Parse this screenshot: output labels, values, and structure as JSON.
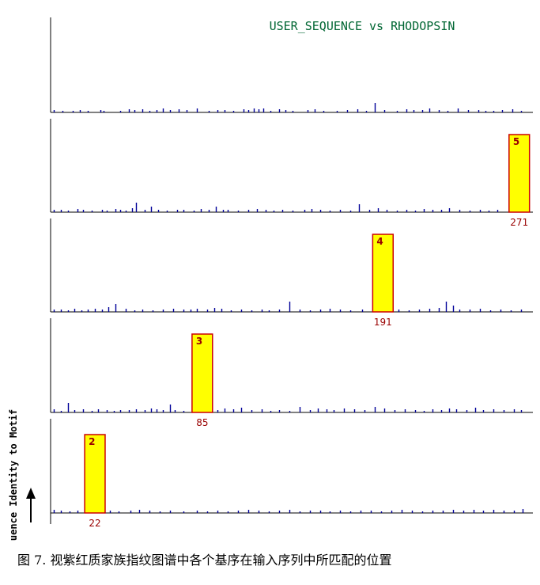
{
  "chart_data": {
    "type": "bar",
    "title": "USER_SEQUENCE vs RHODOPSIN",
    "ylabel": "uence Identity to Motif",
    "panels": [
      {
        "panel": 1,
        "motif_label": "",
        "position_label": "",
        "motif_start": null,
        "motif_end": null,
        "spikes": [
          [
            2,
            3
          ],
          [
            7,
            2
          ],
          [
            13,
            2
          ],
          [
            17,
            3
          ],
          [
            22,
            2
          ],
          [
            29,
            3
          ],
          [
            31,
            2
          ],
          [
            41,
            2
          ],
          [
            46,
            4
          ],
          [
            49,
            3
          ],
          [
            54,
            4
          ],
          [
            58,
            2
          ],
          [
            62,
            3
          ],
          [
            66,
            5
          ],
          [
            70,
            3
          ],
          [
            75,
            4
          ],
          [
            80,
            3
          ],
          [
            86,
            5
          ],
          [
            93,
            2
          ],
          [
            98,
            3
          ],
          [
            102,
            3
          ],
          [
            107,
            2
          ],
          [
            113,
            4
          ],
          [
            116,
            3
          ],
          [
            119,
            5
          ],
          [
            122,
            4
          ],
          [
            125,
            5
          ],
          [
            129,
            2
          ],
          [
            134,
            4
          ],
          [
            138,
            3
          ],
          [
            142,
            2
          ],
          [
            151,
            3
          ],
          [
            155,
            4
          ],
          [
            160,
            2
          ],
          [
            168,
            2
          ],
          [
            174,
            3
          ],
          [
            180,
            4
          ],
          [
            185,
            2
          ],
          [
            190,
            12
          ],
          [
            196,
            3
          ],
          [
            203,
            2
          ],
          [
            209,
            4
          ],
          [
            213,
            3
          ],
          [
            218,
            3
          ],
          [
            222,
            5
          ],
          [
            228,
            3
          ],
          [
            233,
            2
          ],
          [
            239,
            5
          ],
          [
            245,
            3
          ],
          [
            251,
            3
          ],
          [
            255,
            2
          ],
          [
            260,
            2
          ],
          [
            265,
            3
          ],
          [
            271,
            4
          ],
          [
            276,
            2
          ]
        ]
      },
      {
        "panel": 2,
        "motif_label": "5",
        "position_label": "271",
        "motif_start": 269,
        "motif_end": 281,
        "spikes": [
          [
            2,
            3
          ],
          [
            6,
            3
          ],
          [
            10,
            2
          ],
          [
            16,
            4
          ],
          [
            19,
            3
          ],
          [
            24,
            2
          ],
          [
            30,
            3
          ],
          [
            33,
            2
          ],
          [
            38,
            4
          ],
          [
            41,
            3
          ],
          [
            44,
            2
          ],
          [
            48,
            5
          ],
          [
            50,
            12
          ],
          [
            55,
            3
          ],
          [
            59,
            7
          ],
          [
            63,
            3
          ],
          [
            68,
            2
          ],
          [
            74,
            3
          ],
          [
            78,
            3
          ],
          [
            84,
            2
          ],
          [
            88,
            4
          ],
          [
            93,
            3
          ],
          [
            97,
            7
          ],
          [
            101,
            3
          ],
          [
            104,
            3
          ],
          [
            110,
            2
          ],
          [
            116,
            3
          ],
          [
            121,
            4
          ],
          [
            126,
            3
          ],
          [
            131,
            2
          ],
          [
            136,
            3
          ],
          [
            142,
            2
          ],
          [
            149,
            3
          ],
          [
            153,
            4
          ],
          [
            158,
            3
          ],
          [
            164,
            2
          ],
          [
            170,
            3
          ],
          [
            176,
            2
          ],
          [
            181,
            10
          ],
          [
            187,
            3
          ],
          [
            192,
            5
          ],
          [
            197,
            3
          ],
          [
            203,
            2
          ],
          [
            209,
            3
          ],
          [
            214,
            2
          ],
          [
            219,
            4
          ],
          [
            224,
            3
          ],
          [
            229,
            3
          ],
          [
            234,
            5
          ],
          [
            240,
            3
          ],
          [
            246,
            2
          ],
          [
            252,
            3
          ],
          [
            257,
            2
          ],
          [
            262,
            3
          ]
        ]
      },
      {
        "panel": 3,
        "motif_label": "4",
        "position_label": "191",
        "motif_start": 189,
        "motif_end": 201,
        "spikes": [
          [
            2,
            3
          ],
          [
            6,
            3
          ],
          [
            10,
            2
          ],
          [
            14,
            4
          ],
          [
            18,
            2
          ],
          [
            22,
            3
          ],
          [
            26,
            4
          ],
          [
            30,
            3
          ],
          [
            34,
            6
          ],
          [
            38,
            10
          ],
          [
            44,
            4
          ],
          [
            49,
            2
          ],
          [
            54,
            3
          ],
          [
            60,
            2
          ],
          [
            66,
            3
          ],
          [
            72,
            4
          ],
          [
            78,
            3
          ],
          [
            82,
            3
          ],
          [
            86,
            4
          ],
          [
            92,
            3
          ],
          [
            96,
            5
          ],
          [
            100,
            4
          ],
          [
            106,
            2
          ],
          [
            112,
            3
          ],
          [
            118,
            2
          ],
          [
            124,
            3
          ],
          [
            128,
            2
          ],
          [
            134,
            3
          ],
          [
            140,
            13
          ],
          [
            146,
            3
          ],
          [
            152,
            2
          ],
          [
            158,
            3
          ],
          [
            164,
            4
          ],
          [
            170,
            3
          ],
          [
            176,
            2
          ],
          [
            183,
            3
          ],
          [
            204,
            3
          ],
          [
            210,
            2
          ],
          [
            216,
            3
          ],
          [
            222,
            4
          ],
          [
            228,
            5
          ],
          [
            232,
            13
          ],
          [
            236,
            8
          ],
          [
            240,
            3
          ],
          [
            246,
            3
          ],
          [
            252,
            4
          ],
          [
            258,
            2
          ],
          [
            264,
            3
          ],
          [
            270,
            2
          ],
          [
            276,
            3
          ]
        ]
      },
      {
        "panel": 4,
        "motif_label": "3",
        "position_label": "85",
        "motif_start": 83,
        "motif_end": 95,
        "spikes": [
          [
            2,
            4
          ],
          [
            6,
            2
          ],
          [
            10,
            12
          ],
          [
            14,
            3
          ],
          [
            19,
            4
          ],
          [
            24,
            2
          ],
          [
            28,
            4
          ],
          [
            33,
            3
          ],
          [
            37,
            2
          ],
          [
            41,
            3
          ],
          [
            46,
            3
          ],
          [
            50,
            4
          ],
          [
            55,
            3
          ],
          [
            59,
            5
          ],
          [
            62,
            4
          ],
          [
            66,
            3
          ],
          [
            70,
            10
          ],
          [
            73,
            3
          ],
          [
            78,
            2
          ],
          [
            98,
            3
          ],
          [
            102,
            5
          ],
          [
            107,
            4
          ],
          [
            112,
            6
          ],
          [
            118,
            3
          ],
          [
            124,
            4
          ],
          [
            129,
            2
          ],
          [
            134,
            3
          ],
          [
            140,
            2
          ],
          [
            146,
            7
          ],
          [
            152,
            3
          ],
          [
            157,
            5
          ],
          [
            162,
            4
          ],
          [
            166,
            3
          ],
          [
            172,
            5
          ],
          [
            178,
            4
          ],
          [
            184,
            3
          ],
          [
            190,
            7
          ],
          [
            196,
            5
          ],
          [
            202,
            3
          ],
          [
            208,
            4
          ],
          [
            214,
            3
          ],
          [
            219,
            2
          ],
          [
            224,
            4
          ],
          [
            229,
            3
          ],
          [
            234,
            5
          ],
          [
            238,
            4
          ],
          [
            244,
            3
          ],
          [
            249,
            6
          ],
          [
            254,
            3
          ],
          [
            260,
            4
          ],
          [
            266,
            3
          ],
          [
            272,
            4
          ],
          [
            276,
            3
          ]
        ]
      },
      {
        "panel": 5,
        "motif_label": "2",
        "position_label": "22",
        "motif_start": 20,
        "motif_end": 32,
        "spikes": [
          [
            2,
            4
          ],
          [
            6,
            3
          ],
          [
            11,
            2
          ],
          [
            16,
            3
          ],
          [
            35,
            3
          ],
          [
            40,
            2
          ],
          [
            47,
            3
          ],
          [
            52,
            4
          ],
          [
            58,
            3
          ],
          [
            64,
            2
          ],
          [
            70,
            3
          ],
          [
            78,
            2
          ],
          [
            86,
            3
          ],
          [
            92,
            2
          ],
          [
            98,
            3
          ],
          [
            104,
            2
          ],
          [
            110,
            3
          ],
          [
            116,
            4
          ],
          [
            122,
            3
          ],
          [
            128,
            2
          ],
          [
            134,
            3
          ],
          [
            140,
            4
          ],
          [
            146,
            2
          ],
          [
            152,
            3
          ],
          [
            158,
            3
          ],
          [
            164,
            2
          ],
          [
            170,
            3
          ],
          [
            176,
            2
          ],
          [
            182,
            3
          ],
          [
            188,
            3
          ],
          [
            194,
            2
          ],
          [
            200,
            3
          ],
          [
            206,
            4
          ],
          [
            212,
            3
          ],
          [
            218,
            2
          ],
          [
            224,
            3
          ],
          [
            230,
            3
          ],
          [
            236,
            4
          ],
          [
            242,
            3
          ],
          [
            248,
            4
          ],
          [
            254,
            3
          ],
          [
            260,
            4
          ],
          [
            266,
            3
          ],
          [
            272,
            3
          ],
          [
            277,
            5
          ]
        ]
      }
    ],
    "xlim": [
      0,
      283
    ],
    "colors": {
      "spike": "#000099",
      "motif_fill": "#ffff00",
      "motif_border": "#cc0000",
      "label": "#990000",
      "title": "#006633",
      "axis": "#000000"
    }
  },
  "caption": "图 7. 视紫红质家族指纹图谱中各个基序在输入序列中所匹配的位置"
}
